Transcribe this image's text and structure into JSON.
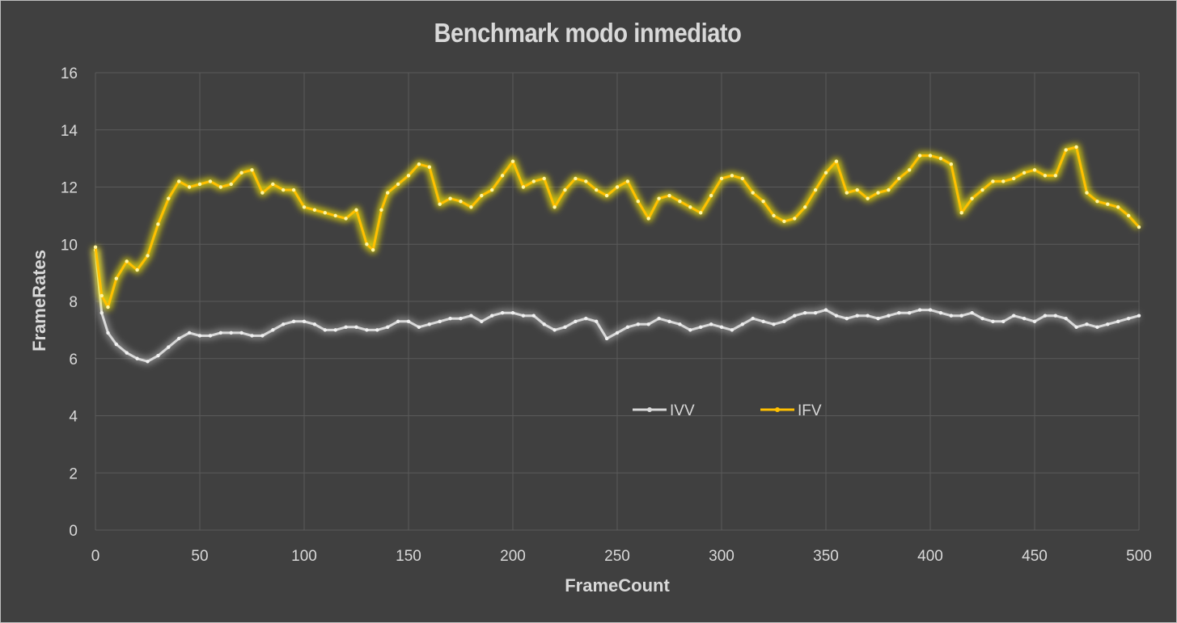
{
  "chart_data": {
    "type": "line",
    "title": "Benchmark modo inmediato",
    "xlabel": "FrameCount",
    "ylabel": "FrameRates",
    "xlim": [
      0,
      500
    ],
    "ylim": [
      0,
      16
    ],
    "xticks": [
      0,
      50,
      100,
      150,
      200,
      250,
      300,
      350,
      400,
      450,
      500
    ],
    "yticks": [
      0,
      2,
      4,
      6,
      8,
      10,
      12,
      14,
      16
    ],
    "grid": true,
    "legend": "center",
    "series": [
      {
        "name": "IVV",
        "color": "#d9d9d9",
        "x": [
          0,
          3,
          6,
          10,
          15,
          20,
          25,
          30,
          35,
          40,
          45,
          50,
          55,
          60,
          65,
          70,
          75,
          80,
          85,
          90,
          95,
          100,
          105,
          110,
          115,
          120,
          125,
          130,
          135,
          140,
          145,
          150,
          155,
          160,
          165,
          170,
          175,
          180,
          185,
          190,
          195,
          200,
          205,
          210,
          215,
          220,
          225,
          230,
          235,
          240,
          245,
          250,
          255,
          260,
          265,
          270,
          275,
          280,
          285,
          290,
          295,
          300,
          305,
          310,
          315,
          320,
          325,
          330,
          335,
          340,
          345,
          350,
          355,
          360,
          365,
          370,
          375,
          380,
          385,
          390,
          395,
          400,
          405,
          410,
          415,
          420,
          425,
          430,
          435,
          440,
          445,
          450,
          455,
          460,
          465,
          470,
          475,
          480,
          485,
          490,
          495,
          500
        ],
        "values": [
          9.8,
          7.6,
          6.9,
          6.5,
          6.2,
          6.0,
          5.9,
          6.1,
          6.4,
          6.7,
          6.9,
          6.8,
          6.8,
          6.9,
          6.9,
          6.9,
          6.8,
          6.8,
          7.0,
          7.2,
          7.3,
          7.3,
          7.2,
          7.0,
          7.0,
          7.1,
          7.1,
          7.0,
          7.0,
          7.1,
          7.3,
          7.3,
          7.1,
          7.2,
          7.3,
          7.4,
          7.4,
          7.5,
          7.3,
          7.5,
          7.6,
          7.6,
          7.5,
          7.5,
          7.2,
          7.0,
          7.1,
          7.3,
          7.4,
          7.3,
          6.7,
          6.9,
          7.1,
          7.2,
          7.2,
          7.4,
          7.3,
          7.2,
          7.0,
          7.1,
          7.2,
          7.1,
          7.0,
          7.2,
          7.4,
          7.3,
          7.2,
          7.3,
          7.5,
          7.6,
          7.6,
          7.7,
          7.5,
          7.4,
          7.5,
          7.5,
          7.4,
          7.5,
          7.6,
          7.6,
          7.7,
          7.7,
          7.6,
          7.5,
          7.5,
          7.6,
          7.4,
          7.3,
          7.3,
          7.5,
          7.4,
          7.3,
          7.5,
          7.5,
          7.4,
          7.1,
          7.2,
          7.1,
          7.2,
          7.3,
          7.4,
          7.5
        ]
      },
      {
        "name": "IFV",
        "color": "#ffc000",
        "x": [
          0,
          3,
          6,
          10,
          15,
          20,
          25,
          30,
          35,
          40,
          45,
          50,
          55,
          60,
          65,
          70,
          75,
          80,
          85,
          90,
          95,
          100,
          105,
          110,
          115,
          120,
          125,
          130,
          133,
          137,
          140,
          145,
          150,
          155,
          160,
          165,
          170,
          175,
          180,
          185,
          190,
          195,
          200,
          205,
          210,
          215,
          220,
          225,
          230,
          235,
          240,
          245,
          250,
          255,
          260,
          265,
          270,
          275,
          280,
          285,
          290,
          295,
          300,
          305,
          310,
          315,
          320,
          325,
          330,
          335,
          340,
          345,
          350,
          355,
          360,
          365,
          370,
          375,
          380,
          385,
          390,
          395,
          400,
          405,
          410,
          415,
          420,
          425,
          430,
          435,
          440,
          445,
          450,
          455,
          460,
          465,
          470,
          475,
          480,
          485,
          490,
          495,
          500
        ],
        "values": [
          9.9,
          8.2,
          7.8,
          8.8,
          9.4,
          9.1,
          9.6,
          10.7,
          11.6,
          12.2,
          12.0,
          12.1,
          12.2,
          12.0,
          12.1,
          12.5,
          12.6,
          11.8,
          12.1,
          11.9,
          11.9,
          11.3,
          11.2,
          11.1,
          11.0,
          10.9,
          11.2,
          10.0,
          9.8,
          11.2,
          11.8,
          12.1,
          12.4,
          12.8,
          12.7,
          11.4,
          11.6,
          11.5,
          11.3,
          11.7,
          11.9,
          12.4,
          12.9,
          12.0,
          12.2,
          12.3,
          11.3,
          11.9,
          12.3,
          12.2,
          11.9,
          11.7,
          12.0,
          12.2,
          11.5,
          10.9,
          11.6,
          11.7,
          11.5,
          11.3,
          11.1,
          11.7,
          12.3,
          12.4,
          12.3,
          11.8,
          11.5,
          11.0,
          10.8,
          10.9,
          11.3,
          11.9,
          12.5,
          12.9,
          11.8,
          11.9,
          11.6,
          11.8,
          11.9,
          12.3,
          12.6,
          13.1,
          13.1,
          13.0,
          12.8,
          11.1,
          11.6,
          11.9,
          12.2,
          12.2,
          12.3,
          12.5,
          12.6,
          12.4,
          12.4,
          13.3,
          13.4,
          11.8,
          11.5,
          11.4,
          11.3,
          11.0,
          10.6
        ]
      }
    ]
  }
}
